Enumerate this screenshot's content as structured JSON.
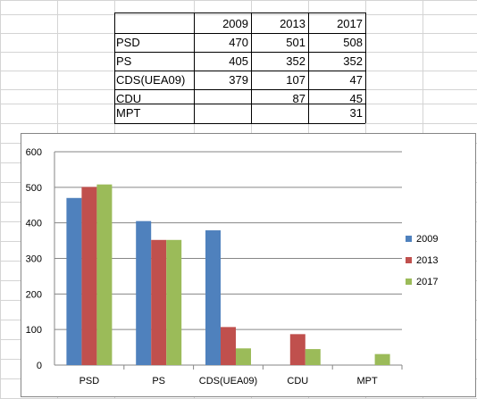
{
  "table": {
    "years": [
      "2009",
      "2013",
      "2017"
    ],
    "rows": [
      {
        "party": "PSD",
        "v2009": "470",
        "v2013": "501",
        "v2017": "508"
      },
      {
        "party": "PS",
        "v2009": "405",
        "v2013": "352",
        "v2017": "352"
      },
      {
        "party": "CDS(UEA09)",
        "v2009": "379",
        "v2013": "107",
        "v2017": "47"
      },
      {
        "party": "CDU",
        "v2009": "",
        "v2013": "87",
        "v2017": "45"
      },
      {
        "party": "MPT",
        "v2009": "",
        "v2013": "",
        "v2017": "31"
      }
    ]
  },
  "chart_data": {
    "type": "bar",
    "categories": [
      "PSD",
      "PS",
      "CDS(UEA09)",
      "CDU",
      "MPT"
    ],
    "series": [
      {
        "name": "2009",
        "values": [
          470,
          405,
          379,
          null,
          null
        ],
        "color": "#4f81bd"
      },
      {
        "name": "2013",
        "values": [
          501,
          352,
          107,
          87,
          null
        ],
        "color": "#c0504d"
      },
      {
        "name": "2017",
        "values": [
          508,
          352,
          47,
          45,
          31
        ],
        "color": "#9bbb59"
      }
    ],
    "ylim": [
      0,
      600
    ],
    "yticks": [
      "0",
      "100",
      "200",
      "300",
      "400",
      "500",
      "600"
    ],
    "grid": true,
    "legend": "right"
  }
}
